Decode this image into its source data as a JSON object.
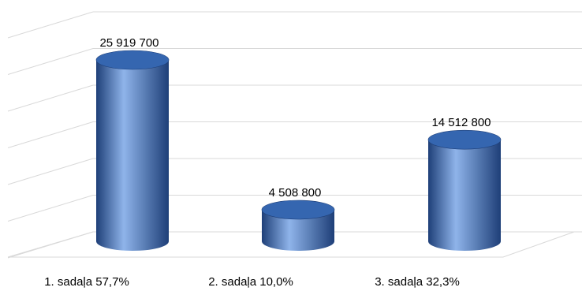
{
  "chart_data": {
    "type": "bar",
    "style": "3d-cylinder",
    "categories": [
      "1. sadaļa 57,7%",
      "2. sadaļa 10,0%",
      "3. sadaļa 32,3%"
    ],
    "values": [
      25919700,
      4508800,
      14512800
    ],
    "data_labels": [
      "25 919 700",
      "4 508 800",
      "14 512 800"
    ],
    "title": "",
    "xlabel": "",
    "ylabel": "",
    "ylim": [
      0,
      30000000
    ],
    "y_gridlines": [
      0,
      5000000,
      10000000,
      15000000,
      20000000,
      25000000,
      30000000
    ],
    "grid": true,
    "y_axis_labels_visible": false,
    "legend": "none",
    "colors": {
      "bar": "#4a7cc7",
      "bar_dark": "#1e3f78",
      "bar_light": "#8fb4ea",
      "bar_top": "#3566b0",
      "grid": "#d9d9d9",
      "text": "#000000"
    }
  }
}
